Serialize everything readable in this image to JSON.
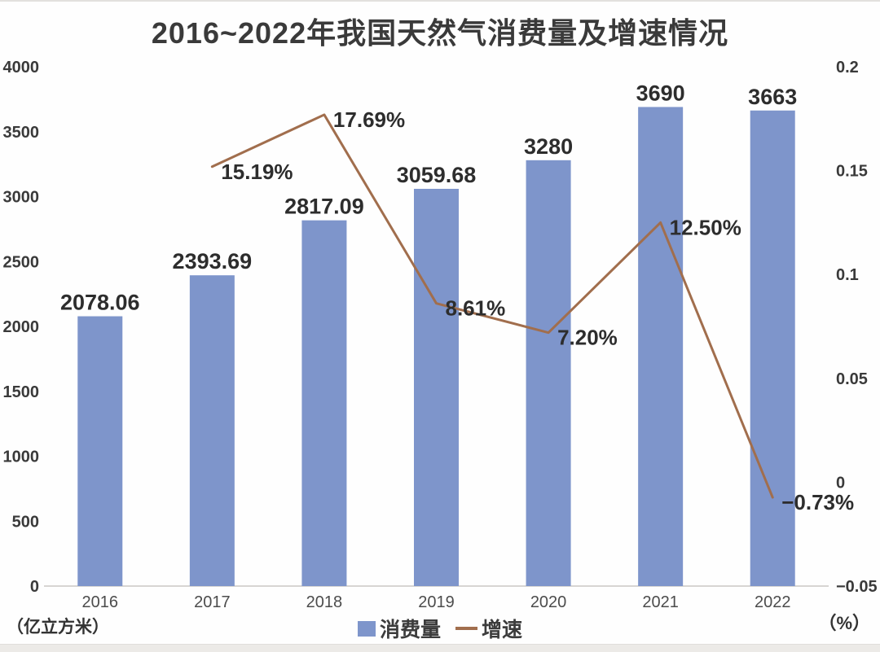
{
  "title": "2016~2022年我国天然气消费量及增速情况",
  "legend": {
    "items": [
      {
        "label": "消费量",
        "swatch": "bar-square",
        "color": "#7E95CB"
      },
      {
        "label": "增速",
        "swatch": "line-dash",
        "color": "#A16E4D"
      }
    ]
  },
  "chart_data": {
    "type": "combo-bar-line",
    "title": "2016~2022年我国天然气消费量及增速情况",
    "categories": [
      "2016",
      "2017",
      "2018",
      "2019",
      "2020",
      "2021",
      "2022"
    ],
    "series": [
      {
        "name": "消费量",
        "type": "bar",
        "axis": "left",
        "color": "#7E95CB",
        "values": [
          2078.06,
          2393.69,
          2817.09,
          3059.68,
          3280,
          3690,
          3663
        ],
        "labels": [
          "2078.06",
          "2393.69",
          "2817.09",
          "3059.68",
          "3280",
          "3690",
          "3663"
        ]
      },
      {
        "name": "增速",
        "type": "line",
        "axis": "right",
        "color": "#A16E4D",
        "values": [
          null,
          0.1519,
          0.1769,
          0.0861,
          0.072,
          0.125,
          -0.0073
        ],
        "labels": [
          null,
          "15.19%",
          "17.69%",
          "8.61%",
          "7.20%",
          "12.50%",
          "−0.73%"
        ]
      }
    ],
    "left_axis": {
      "unit": "（亿立方米）",
      "min": 0,
      "max": 4000,
      "tick_values": [
        0,
        500,
        1000,
        1500,
        2000,
        2500,
        3000,
        3500,
        4000
      ],
      "tick_labels": [
        "0",
        "500",
        "1000",
        "1500",
        "2000",
        "2500",
        "3000",
        "3500",
        "4000"
      ]
    },
    "right_axis": {
      "unit": "（%）",
      "min": -0.05,
      "max": 0.2,
      "tick_values": [
        -0.05,
        0,
        0.05,
        0.1,
        0.15,
        0.2
      ],
      "tick_labels": [
        "−0.05",
        "0",
        "0.05",
        "0.1",
        "0.15",
        "0.2"
      ]
    },
    "grid": false,
    "legend_position": "bottom-center"
  }
}
